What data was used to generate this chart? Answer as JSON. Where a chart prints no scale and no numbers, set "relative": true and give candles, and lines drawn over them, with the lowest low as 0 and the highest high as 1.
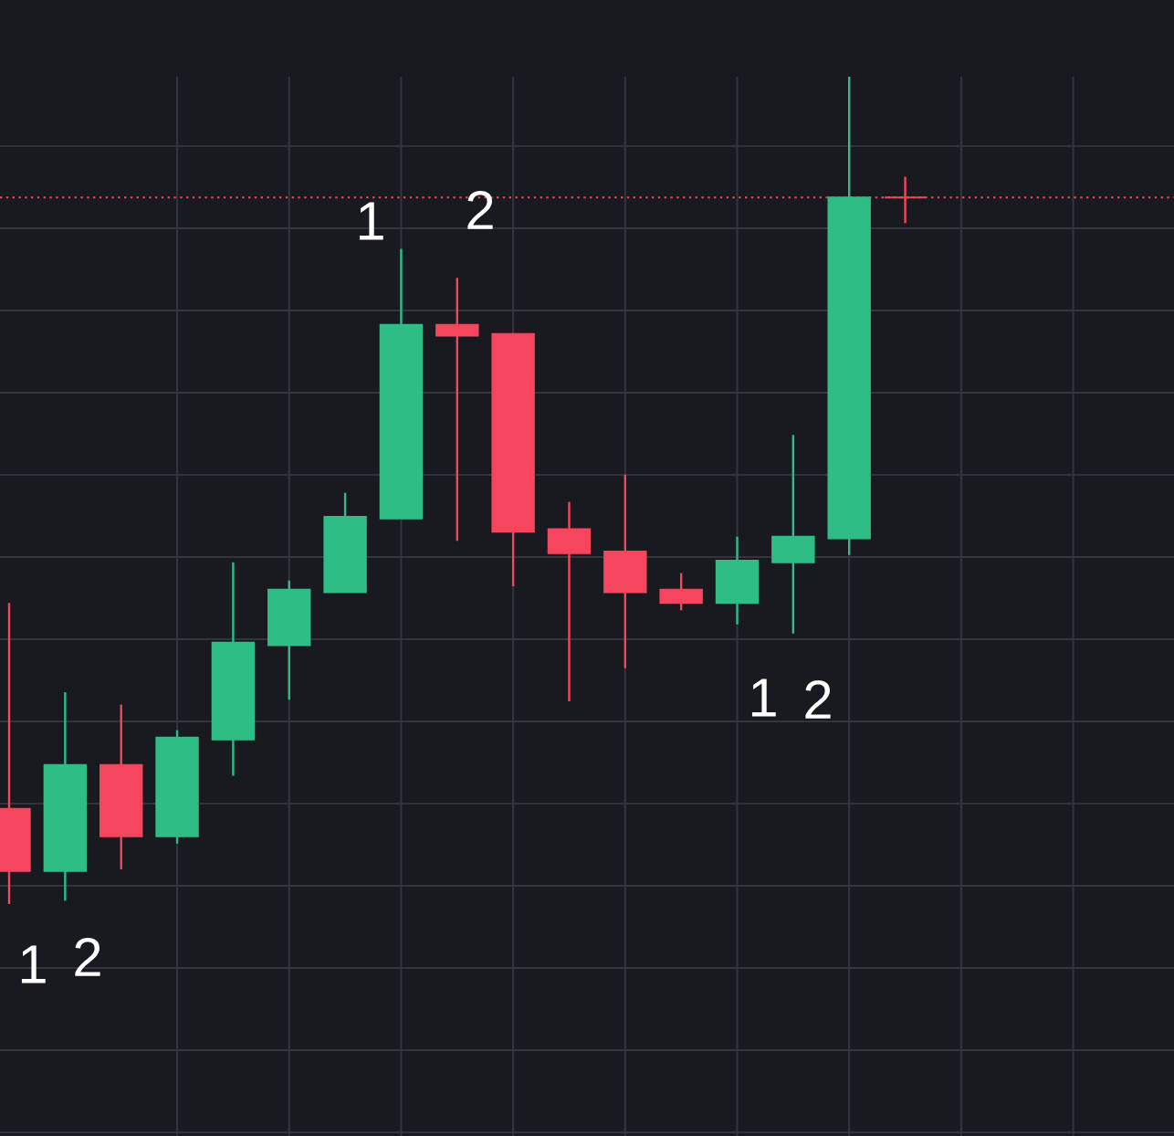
{
  "chart_data": {
    "type": "candlestick",
    "relative": true,
    "categories": [
      null,
      null,
      null,
      null,
      null,
      null,
      null,
      null,
      null,
      null,
      null,
      null,
      null,
      null,
      null,
      null,
      null
    ],
    "ohlc": [
      [
        0.115,
        0.364,
        0,
        0.04
      ],
      [
        0.04,
        0.256,
        0.004,
        0.168
      ],
      [
        0.168,
        0.241,
        0.042,
        0.082
      ],
      [
        0.082,
        0.21,
        0.073,
        0.201
      ],
      [
        0.199,
        0.413,
        0.155,
        0.316
      ],
      [
        0.313,
        0.391,
        0.247,
        0.38
      ],
      [
        0.377,
        0.497,
        0.377,
        0.468
      ],
      [
        0.466,
        0.792,
        0.466,
        0.7
      ],
      [
        0.7,
        0.757,
        0.439,
        0.687
      ],
      [
        0.689,
        0.689,
        0.384,
        0.45
      ],
      [
        0.453,
        0.486,
        0.245,
        0.424
      ],
      [
        0.426,
        0.519,
        0.285,
        0.377
      ],
      [
        0.38,
        0.4,
        0.355,
        0.364
      ],
      [
        0.364,
        0.444,
        0.338,
        0.415
      ],
      [
        0.413,
        0.567,
        0.327,
        0.444
      ],
      [
        0.442,
        1,
        0.422,
        0.854
      ],
      [
        0.854,
        0.879,
        0.823,
        0.854
      ]
    ],
    "colors": [
      "#f6465d",
      "#2ebd85",
      "#f6465d",
      "#2ebd85",
      "#2ebd85",
      "#2ebd85",
      "#2ebd85",
      "#2ebd85",
      "#f6465d",
      "#f6465d",
      "#f6465d",
      "#f6465d",
      "#f6465d",
      "#2ebd85",
      "#2ebd85",
      "#2ebd85",
      "#f6465d"
    ],
    "grid": true,
    "tick_labels": false,
    "ref_lines": [
      {
        "axis": "y",
        "value": 0.854,
        "color": "#f6465d",
        "line_style": "dotted"
      }
    ],
    "annotations": [
      "1",
      "2",
      "1",
      "2",
      "1",
      "2"
    ]
  }
}
